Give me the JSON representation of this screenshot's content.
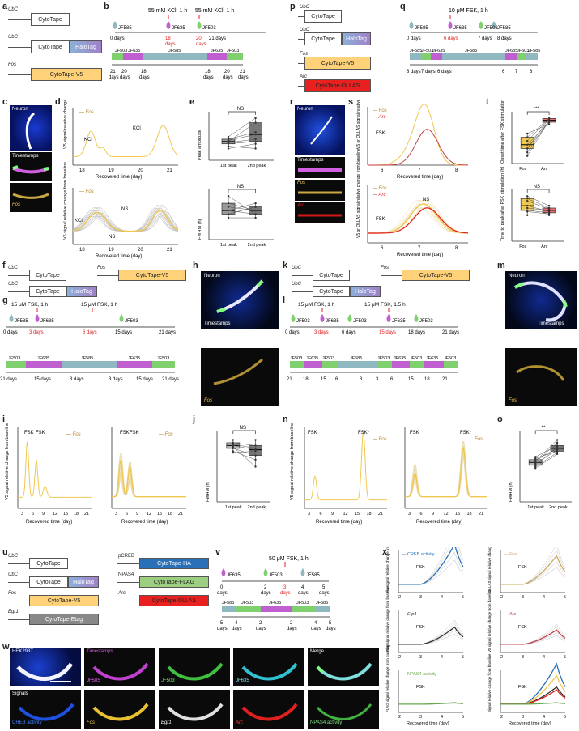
{
  "labels": {
    "a": "a",
    "b": "b",
    "c": "c",
    "d": "d",
    "e": "e",
    "f": "f",
    "g": "g",
    "h": "h",
    "i": "i",
    "j": "j",
    "k": "k",
    "l": "l",
    "m": "m",
    "n": "n",
    "o": "o",
    "p": "p",
    "q": "q",
    "r": "r",
    "s": "s",
    "t": "t",
    "u": "u",
    "v": "v",
    "w": "w",
    "x": "x"
  },
  "constructs": {
    "ubc": "UbC",
    "fos": "Fos",
    "arc": "Arc",
    "egr1": "Egr1",
    "pcreb": "pCREB",
    "npas4": "NPAS4",
    "cytotape": "CytoTape",
    "halotag": "HaloTag",
    "cytotape_v5": "CytoTape-V5",
    "cytotape_ollas": "CytoTape-OLLAS",
    "cytotape_ha": "CytoTape-HA",
    "cytotape_flag": "CytoTape-FLAG",
    "cytotape_etag": "CytoTape-Etag"
  },
  "dyes": {
    "jf585": "JF585",
    "jf635": "JF635",
    "jf503": "JF503"
  },
  "panel_b": {
    "stim1": "55 mM KCl, 1 h",
    "stim2": "55 mM KCl, 1 h",
    "d0": "0 days",
    "d18": "18",
    "d20": "20",
    "d21": "21 days",
    "days": "days",
    "bottom": [
      "21",
      "20",
      "18",
      "18",
      "20",
      "21"
    ]
  },
  "panel_c": {
    "neuron": "Neuron",
    "timestamps": "Timestamps",
    "fos": "Fos"
  },
  "panel_d": {
    "legend": "Fos",
    "ylabel1": "V5 signal relative change from baseline",
    "ylabel2": "V5 signal relative change from baseline",
    "xlabel": "Recovered time (day)",
    "kcl": "KCl",
    "ns": "NS",
    "ticks": [
      "18",
      "19",
      "20",
      "21"
    ]
  },
  "panel_e": {
    "ylabel1": "Peak amplitude",
    "ylabel2": "FWHM (h)",
    "ns": "NS",
    "x1": "1st peak",
    "x2": "2nd peak"
  },
  "panel_g": {
    "stim1": "15 μM FSK, 1 h",
    "stim2": "15 μM FSK, 1 h",
    "t": [
      "0 days",
      "3 days",
      "6 days",
      "15 days",
      "21 days"
    ],
    "bottom": [
      "21 days",
      "15 days",
      "3 days",
      "3 days",
      "15 days",
      "21 days"
    ]
  },
  "panel_h": {
    "neuron": "Neuron",
    "timestamps": "Timestamps",
    "fos": "Fos"
  },
  "panel_i": {
    "ylabel": "V5 signal relative change from baseline",
    "xlabel": "Recovered time (day)",
    "fsk": "FSK",
    "legend": "Fos",
    "ticks": [
      "3",
      "6",
      "9",
      "12",
      "15",
      "18",
      "21"
    ]
  },
  "panel_j": {
    "ylabel": "FWHM (h)",
    "ns": "NS",
    "x1": "1st peak",
    "x2": "2nd peak"
  },
  "panel_l": {
    "stim1": "15 μM FSK, 1 h",
    "stim2": "15 μM FSK, 1.5 h",
    "t": [
      "0 days",
      "3 days",
      "6 days",
      "15 days",
      "18 days",
      "21 days"
    ],
    "bottom": [
      "21",
      "18",
      "15",
      "6",
      "3",
      "3",
      "6",
      "15",
      "18",
      "21"
    ]
  },
  "panel_m": {
    "neuron": "Neuron",
    "timestamps": "Timestamps",
    "fos": "Fos"
  },
  "panel_n": {
    "ylabel": "V5 signal relative change from baseline",
    "xlabel": "Recovered time (day)",
    "fsk": "FSK",
    "fsk2": "FSK*",
    "legend": "Fos",
    "ticks": [
      "3",
      "6",
      "9",
      "12",
      "15",
      "18",
      "21"
    ]
  },
  "panel_o": {
    "ylabel": "FWHM (h)",
    "stars": "**",
    "x1": "1st peak",
    "x2": "2nd peak"
  },
  "panel_q": {
    "stim": "10 μM FSK, 1 h",
    "t": [
      "0 days",
      "6 days",
      "7 days",
      "8 days"
    ],
    "bottom": [
      "8 days",
      "7 days",
      "6 days",
      "6",
      "7",
      "8"
    ]
  },
  "panel_r": {
    "neuron": "Neuron",
    "timestamps": "Timestamps",
    "fos": "Fos",
    "arc": "Arc"
  },
  "panel_s": {
    "ylabel1": "V5 or OLLAS signal relative change from baseline",
    "ylabel2": "V5 or OLLAS signal relative change from baseline",
    "xlabel": "Recovered time (day)",
    "fsk": "FSK",
    "fos": "Fos",
    "arc": "Arc",
    "ns": "NS",
    "ticks": [
      "6",
      "7",
      "8"
    ]
  },
  "panel_t": {
    "ylabel1": "Onset time after FSK stimulation (h)",
    "ylabel2": "Time to peak after FSK stimulation (h)",
    "stars": "***",
    "ns": "NS",
    "x1": "Fos",
    "x2": "Arc"
  },
  "panel_v": {
    "stim": "50 μM FSK, 1 h",
    "t": [
      "0",
      "2",
      "3",
      "4",
      "5"
    ],
    "days": "days",
    "bottom": [
      "5",
      "4",
      "2",
      "2",
      "4",
      "5"
    ]
  },
  "panel_w": {
    "cell": "HEK293T",
    "timestamps": "Timestamps",
    "jf585": "JF585",
    "jf503": "JF503",
    "jf635": "JF635",
    "merge": "Merge",
    "signals": "Signals",
    "creb": "CREB activity",
    "fos": "Fos",
    "egr1": "Egr1",
    "arc": "Arc",
    "npas4": "NPAS4 activity"
  },
  "panel_x": {
    "creb": "CREB activity",
    "fos": "Fos",
    "egr1": "Egr1",
    "arc": "Arc",
    "npas4": "NPAS4 activity",
    "fsk": "FSK",
    "y_ha": "HA signal relative change from baseline",
    "y_ollas": "OLLAS signal relative change from baseline",
    "y_etag": "Etag signal relative change from baseline",
    "y_v5": "V5 signal relative change from baseline",
    "y_flag": "FLAG signal relative change from baseline",
    "y_sig": "Signal relative change from baseline",
    "xlabel": "Recovered time (day)",
    "ticks": [
      "2",
      "3",
      "4",
      "5"
    ]
  },
  "colors": {
    "fos": "#f0c850",
    "arc": "#e02020",
    "creb": "#2a70b8",
    "egr1": "#333333",
    "npas4": "#6aa84f",
    "jf585": "#8fb8c0",
    "jf635": "#c060d0",
    "jf503": "#80d070",
    "halo": "#9090d0",
    "fosbox": "#ffd27a"
  }
}
